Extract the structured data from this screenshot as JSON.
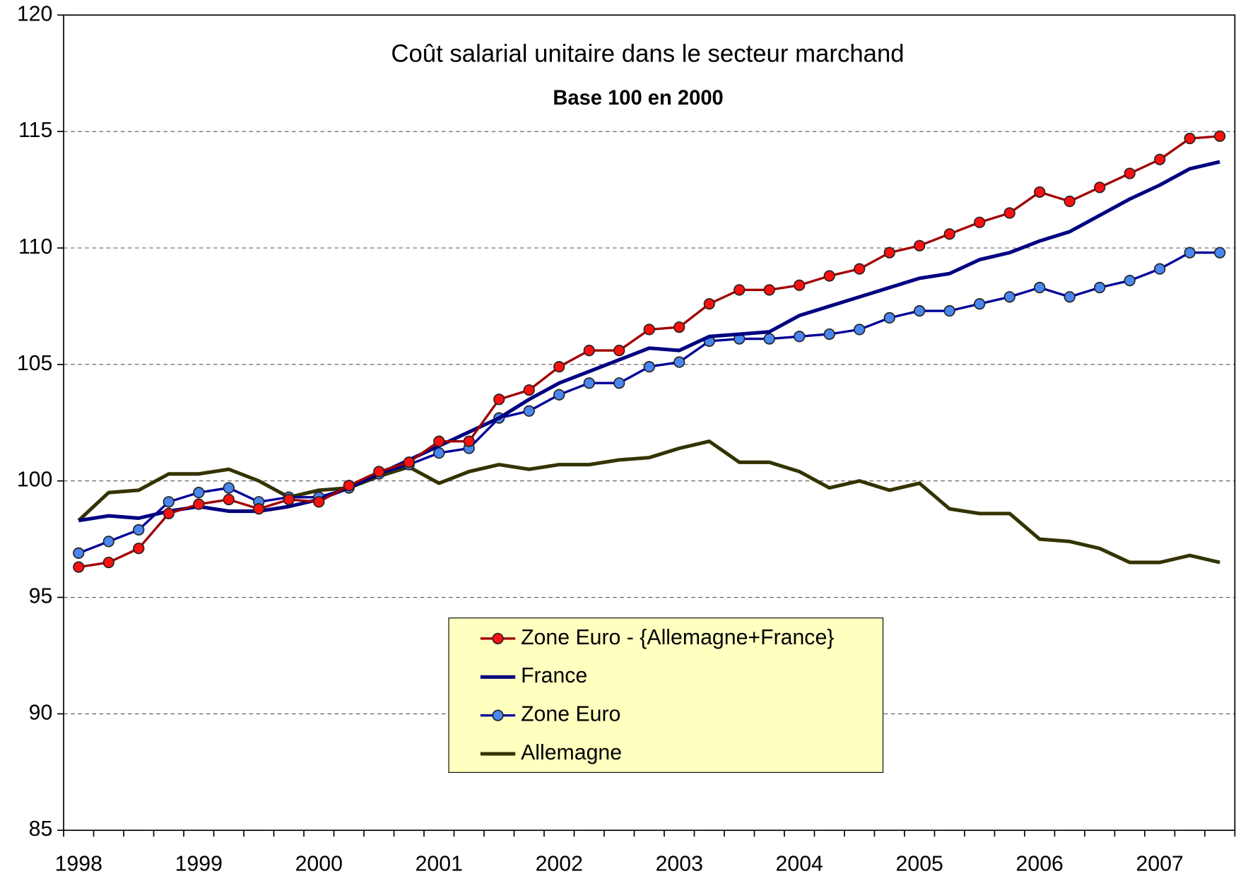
{
  "chart_data": {
    "type": "line",
    "title": "Coût salarial unitaire dans le secteur marchand",
    "subtitle": "Base 100 en 2000",
    "categories": [
      "1998",
      null,
      null,
      null,
      "1999",
      null,
      null,
      null,
      "2000",
      null,
      null,
      null,
      "2001",
      null,
      null,
      null,
      "2002",
      null,
      null,
      null,
      "2003",
      null,
      null,
      null,
      "2004",
      null,
      null,
      null,
      "2005",
      null,
      null,
      null,
      "2006",
      null,
      null,
      null,
      "2007",
      null,
      null
    ],
    "ylim": [
      85,
      120
    ],
    "yticks": [
      85,
      90,
      95,
      100,
      105,
      110,
      115,
      120
    ],
    "grid": true,
    "series": [
      {
        "name": "Zone Euro - {Allemagne+France}",
        "color": "#a00000",
        "marker_color": "#ff1010",
        "marker": true,
        "values": [
          96.3,
          96.5,
          97.1,
          98.6,
          99.0,
          99.2,
          98.8,
          99.2,
          99.1,
          99.8,
          100.4,
          100.8,
          101.7,
          101.7,
          103.5,
          103.9,
          104.9,
          105.6,
          105.6,
          106.5,
          106.6,
          107.6,
          108.2,
          108.2,
          108.4,
          108.8,
          109.1,
          109.8,
          110.1,
          110.6,
          111.1,
          111.5,
          112.4,
          112.0,
          112.6,
          113.2,
          113.8,
          114.7,
          114.8
        ]
      },
      {
        "name": "France",
        "color": "#000080",
        "marker": false,
        "values": [
          98.3,
          98.5,
          98.4,
          98.7,
          98.9,
          98.7,
          98.7,
          98.9,
          99.2,
          99.7,
          100.3,
          100.9,
          101.5,
          102.1,
          102.7,
          103.5,
          104.2,
          104.7,
          105.2,
          105.7,
          105.6,
          106.2,
          106.3,
          106.4,
          107.1,
          107.5,
          107.9,
          108.3,
          108.7,
          108.9,
          109.5,
          109.8,
          110.3,
          110.7,
          111.4,
          112.1,
          112.7,
          113.4,
          113.7
        ]
      },
      {
        "name": "Zone Euro",
        "color": "#000099",
        "marker_color": "#4a86f0",
        "marker": true,
        "values": [
          96.9,
          97.4,
          97.9,
          99.1,
          99.5,
          99.7,
          99.1,
          99.3,
          99.3,
          99.7,
          100.3,
          100.7,
          101.2,
          101.4,
          102.7,
          103.0,
          103.7,
          104.2,
          104.2,
          104.9,
          105.1,
          106.0,
          106.1,
          106.1,
          106.2,
          106.3,
          106.5,
          107.0,
          107.3,
          107.3,
          107.6,
          107.9,
          108.3,
          107.9,
          108.3,
          108.6,
          109.1,
          109.8,
          109.8
        ]
      },
      {
        "name": "Allemagne",
        "color": "#333300",
        "marker": false,
        "values": [
          98.3,
          99.5,
          99.6,
          100.3,
          100.3,
          100.5,
          100.0,
          99.3,
          99.6,
          99.7,
          100.2,
          100.6,
          99.9,
          100.4,
          100.7,
          100.5,
          100.7,
          100.7,
          100.9,
          101.0,
          101.4,
          101.7,
          100.8,
          100.8,
          100.4,
          99.7,
          100.0,
          99.6,
          99.9,
          98.8,
          98.6,
          98.6,
          97.5,
          97.4,
          97.1,
          96.5,
          96.5,
          96.8,
          96.5
        ]
      }
    ]
  }
}
